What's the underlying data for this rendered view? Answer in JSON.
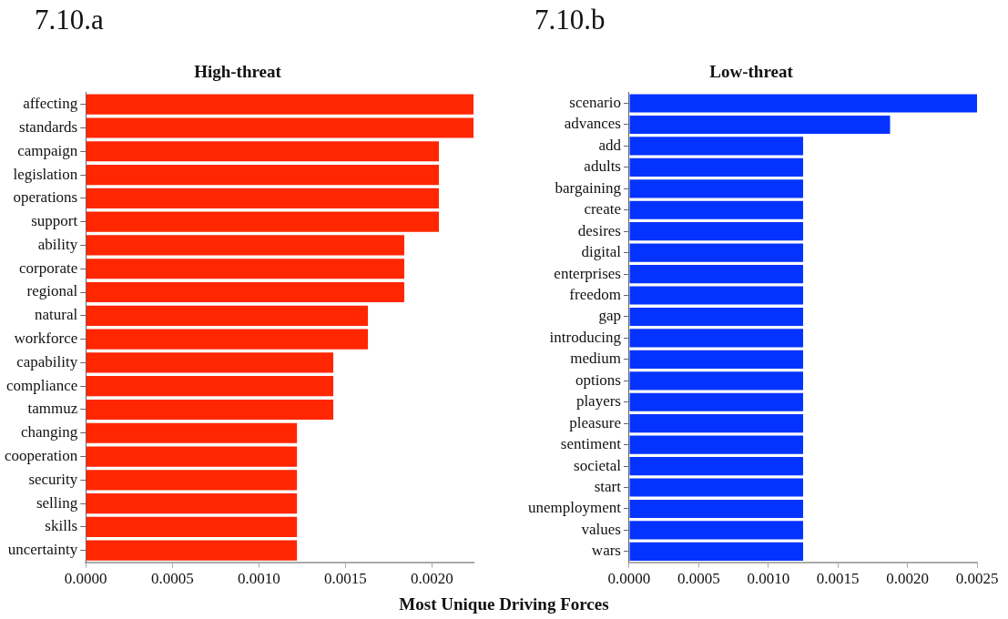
{
  "chart_data": [
    {
      "type": "bar",
      "orientation": "horizontal",
      "title": "High-threat",
      "xlabel": "Most Unique Driving Forces",
      "annotations": [
        "7.10.a"
      ],
      "categories": [
        "affecting",
        "standards",
        "campaign",
        "legislation",
        "operations",
        "support",
        "ability",
        "corporate",
        "regional",
        "natural",
        "workforce",
        "capability",
        "compliance",
        "tammuz",
        "changing",
        "cooperation",
        "security",
        "selling",
        "skills",
        "uncertainty"
      ],
      "series": [
        {
          "color": "#ff2600",
          "values": [
            0.00224,
            0.00224,
            0.00204,
            0.00204,
            0.00204,
            0.00204,
            0.00184,
            0.00184,
            0.00184,
            0.00163,
            0.00163,
            0.00143,
            0.00143,
            0.00143,
            0.00122,
            0.00122,
            0.00122,
            0.00122,
            0.00122,
            0.00122
          ]
        }
      ],
      "xlim": [
        0,
        0.00224
      ],
      "xticks": [
        {
          "value": 0,
          "label": "0.0000"
        },
        {
          "value": 0.0005,
          "label": "0.0005"
        },
        {
          "value": 0.001,
          "label": "0.0010"
        },
        {
          "value": 0.0015,
          "label": "0.0015"
        },
        {
          "value": 0.002,
          "label": "0.0020"
        }
      ],
      "grid": false,
      "legend": false
    },
    {
      "type": "bar",
      "orientation": "horizontal",
      "title": "Low-threat",
      "annotations": [
        "7.10.b"
      ],
      "categories": [
        "scenario",
        "advances",
        "add",
        "adults",
        "bargaining",
        "create",
        "desires",
        "digital",
        "enterprises",
        "freedom",
        "gap",
        "introducing",
        "medium",
        "options",
        "players",
        "pleasure",
        "sentiment",
        "societal",
        "start",
        "unemployment",
        "values",
        "wars"
      ],
      "series": [
        {
          "color": "#0433ff",
          "values": [
            0.0025,
            0.001875,
            0.00125,
            0.00125,
            0.00125,
            0.00125,
            0.00125,
            0.00125,
            0.00125,
            0.00125,
            0.00125,
            0.00125,
            0.00125,
            0.00125,
            0.00125,
            0.00125,
            0.00125,
            0.00125,
            0.00125,
            0.00125,
            0.00125,
            0.00125
          ]
        }
      ],
      "xlim": [
        0,
        0.0025
      ],
      "xticks": [
        {
          "value": 0,
          "label": "0.0000"
        },
        {
          "value": 0.0005,
          "label": "0.0005"
        },
        {
          "value": 0.001,
          "label": "0.0010"
        },
        {
          "value": 0.0015,
          "label": "0.0015"
        },
        {
          "value": 0.002,
          "label": "0.0020"
        },
        {
          "value": 0.0025,
          "label": "0.0025"
        }
      ],
      "grid": false,
      "legend": false
    }
  ]
}
